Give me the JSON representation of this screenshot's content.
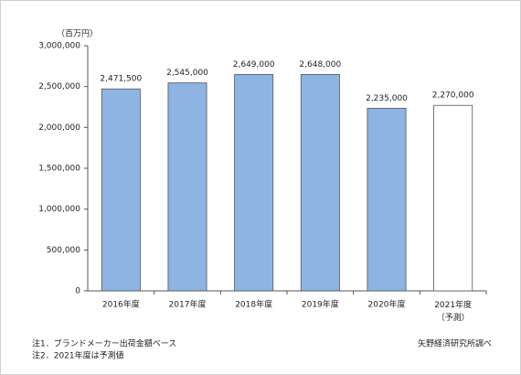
{
  "chart_data": {
    "type": "bar",
    "unit_label": "（百万円）",
    "categories": [
      "2016年度",
      "2017年度",
      "2018年度",
      "2019年度",
      "2020年度",
      "2021年度\n（予測）"
    ],
    "values": [
      2471500,
      2545000,
      2649000,
      2648000,
      2235000,
      2270000
    ],
    "value_labels": [
      "2,471,500",
      "2,545,000",
      "2,649,000",
      "2,648,000",
      "2,235,000",
      "2,270,000"
    ],
    "bar_colors": [
      "#8db4e2",
      "#8db4e2",
      "#8db4e2",
      "#8db4e2",
      "#8db4e2",
      "#ffffff"
    ],
    "ylim": [
      0,
      3000000
    ],
    "yticks": [
      0,
      {
        "value": 500000,
        "label": "500,000"
      },
      {
        "value": 1000000,
        "label": "1,000,000"
      },
      {
        "value": 1500000,
        "label": "1,500,000"
      },
      {
        "value": 2000000,
        "label": "2,000,000"
      },
      {
        "value": 2500000,
        "label": "2,500,000"
      },
      {
        "value": 3000000,
        "label": "3,000,000"
      }
    ],
    "grid": false,
    "notes": [
      "注1．ブランドメーカー出荷金額ベース",
      "注2．2021年度は予測値"
    ],
    "source": "矢野経済研究所調べ"
  }
}
